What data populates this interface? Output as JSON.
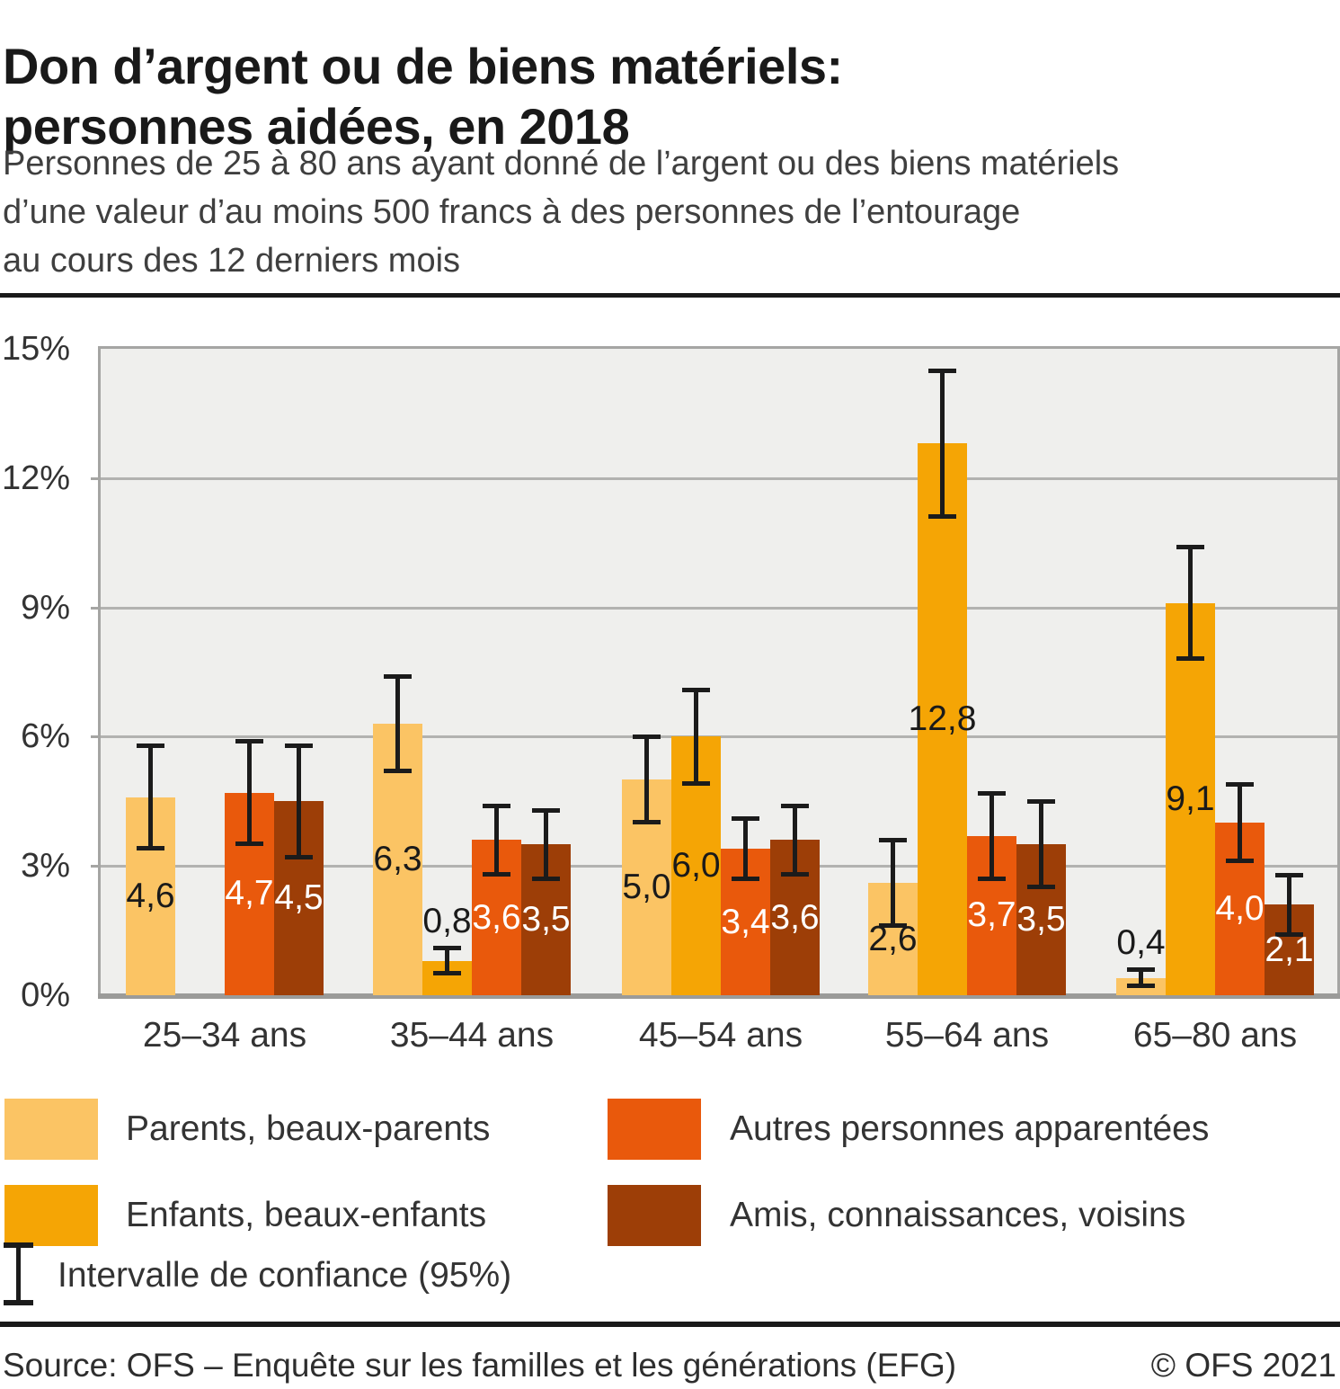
{
  "chart_data": {
    "type": "bar",
    "title": "Don d’argent ou de biens matériels:\npersonnes aidées, en 2018",
    "subtitle": "Personnes de 25 à 80 ans ayant donné de l’argent ou des biens matériels\nd’une valeur d’au moins 500 francs à des personnes de l’entourage\nau cours des 12 derniers mois",
    "categories": [
      "25–34 ans",
      "35–44 ans",
      "45–54 ans",
      "55–64 ans",
      "65–80 ans"
    ],
    "series": [
      {
        "name": "Parents, beaux-parents",
        "color": "#FBC464",
        "label_color": "#1a1a1a",
        "values": [
          4.6,
          6.3,
          5.0,
          2.6,
          0.4
        ],
        "value_labels": [
          "4,6",
          "6,3",
          "5,0",
          "2,6",
          "0,4"
        ],
        "ci_low": [
          3.4,
          5.2,
          4.0,
          1.6,
          0.2
        ],
        "ci_high": [
          5.8,
          7.4,
          6.0,
          3.6,
          0.6
        ]
      },
      {
        "name": "Enfants, beaux-enfants",
        "color": "#F5A505",
        "label_color": "#1a1a1a",
        "values": [
          null,
          0.8,
          6.0,
          12.8,
          9.1
        ],
        "value_labels": [
          null,
          "0,8",
          "6,0",
          "12,8",
          "9,1"
        ],
        "ci_low": [
          null,
          0.5,
          4.9,
          11.1,
          7.8
        ],
        "ci_high": [
          null,
          1.1,
          7.1,
          14.5,
          10.4
        ]
      },
      {
        "name": "Autres personnes apparentées",
        "color": "#E9590C",
        "label_color": "#ffffff",
        "values": [
          4.7,
          3.6,
          3.4,
          3.7,
          4.0
        ],
        "value_labels": [
          "4,7",
          "3,6",
          "3,4",
          "3,7",
          "4,0"
        ],
        "ci_low": [
          3.5,
          2.8,
          2.7,
          2.7,
          3.1
        ],
        "ci_high": [
          5.9,
          4.4,
          4.1,
          4.7,
          4.9
        ]
      },
      {
        "name": "Amis, connaissances, voisins",
        "color": "#9D3E07",
        "label_color": "#ffffff",
        "values": [
          4.5,
          3.5,
          3.6,
          3.5,
          2.1
        ],
        "value_labels": [
          "4,5",
          "3,5",
          "3,6",
          "3,5",
          "2,1"
        ],
        "ci_low": [
          3.2,
          2.7,
          2.8,
          2.5,
          1.4
        ],
        "ci_high": [
          5.8,
          4.3,
          4.4,
          4.5,
          2.8
        ]
      }
    ],
    "ylim": [
      0,
      15
    ],
    "ytick_labels": [
      "15%",
      "12%",
      "9%",
      "6%",
      "3%",
      "0%"
    ],
    "grid": "horizontal",
    "legend_position": "bottom",
    "ci_note": "Intervalle de confiance (95%)",
    "error_bars": "95% confidence interval"
  },
  "footer": {
    "source": "Source: OFS – Enquête sur les familles et les générations (EFG)",
    "copyright": "© OFS 2021"
  }
}
